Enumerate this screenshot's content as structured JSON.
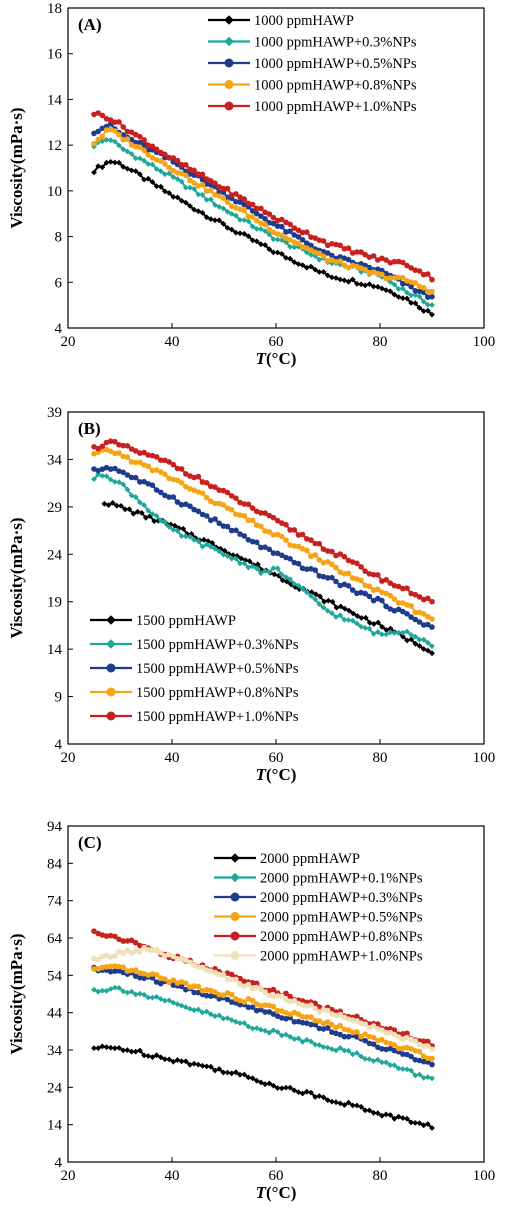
{
  "chart_data": [
    {
      "type": "line",
      "panel_label": "(A)",
      "xlabel": "T(°C)",
      "ylabel": "Viscosity(mPa·s)",
      "xlim": [
        20,
        100
      ],
      "ylim": [
        4,
        18
      ],
      "xticks": [
        20,
        40,
        60,
        80,
        100
      ],
      "yticks": [
        4,
        6,
        8,
        10,
        12,
        14,
        16,
        18
      ],
      "legend_position": "top-right",
      "series": [
        {
          "name": "1000 ppmHAWP",
          "color": "#000000",
          "marker": "diamond",
          "x": [
            25,
            28,
            30,
            40,
            50,
            60,
            70,
            80,
            85,
            90
          ],
          "y": [
            10.9,
            11.3,
            11.2,
            9.8,
            8.5,
            7.3,
            6.3,
            5.8,
            5.3,
            4.6
          ]
        },
        {
          "name": "1000 ppmHAWP+0.3%NPs",
          "color": "#1fa89a",
          "marker": "diamond",
          "x": [
            25,
            28,
            30,
            40,
            50,
            60,
            70,
            80,
            85,
            90
          ],
          "y": [
            12.0,
            12.3,
            11.9,
            10.6,
            9.2,
            7.9,
            6.9,
            6.3,
            5.6,
            5.0
          ]
        },
        {
          "name": "1000 ppmHAWP+0.5%NPs",
          "color": "#1f3c8c",
          "marker": "circle",
          "x": [
            25,
            28,
            30,
            40,
            50,
            60,
            70,
            80,
            85,
            90
          ],
          "y": [
            12.6,
            12.9,
            12.5,
            11.3,
            9.9,
            8.5,
            7.2,
            6.5,
            5.9,
            5.3
          ]
        },
        {
          "name": "1000 ppmHAWP+0.8%NPs",
          "color": "#f5a416",
          "marker": "circle",
          "x": [
            25,
            28,
            30,
            40,
            50,
            60,
            70,
            80,
            85,
            90
          ],
          "y": [
            12.1,
            12.7,
            12.4,
            11.0,
            9.6,
            8.2,
            7.0,
            6.3,
            6.1,
            5.6
          ]
        },
        {
          "name": "1000 ppmHAWP+1.0%NPs",
          "color": "#c8201e",
          "marker": "circle",
          "x": [
            25,
            28,
            30,
            40,
            50,
            60,
            70,
            80,
            85,
            90
          ],
          "y": [
            13.4,
            13.2,
            12.9,
            11.4,
            10.1,
            8.8,
            7.7,
            7.0,
            6.8,
            6.2
          ]
        }
      ]
    },
    {
      "type": "line",
      "panel_label": "(B)",
      "xlabel": "T(°C)",
      "ylabel": "Viscosity(mPa·s)",
      "xlim": [
        20,
        100
      ],
      "ylim": [
        4,
        39
      ],
      "xticks": [
        20,
        40,
        60,
        80,
        100
      ],
      "yticks": [
        4,
        9,
        14,
        19,
        24,
        29,
        34,
        39
      ],
      "legend_position": "bottom-left",
      "series": [
        {
          "name": "1500 ppmHAWP",
          "color": "#000000",
          "marker": "diamond",
          "x": [
            27,
            30,
            40,
            50,
            60,
            70,
            80,
            90
          ],
          "y": [
            29.5,
            29.0,
            27.0,
            24.5,
            21.8,
            19.0,
            16.5,
            13.8
          ]
        },
        {
          "name": "1500 ppmHAWP+0.3%NPs",
          "color": "#1fa89a",
          "marker": "diamond",
          "x": [
            25,
            27,
            30,
            35,
            40,
            50,
            58,
            60,
            70,
            80,
            85,
            90
          ],
          "y": [
            32.0,
            32.5,
            31.5,
            29.0,
            26.5,
            24.0,
            22.0,
            22.5,
            18.0,
            15.5,
            16.0,
            14.5
          ]
        },
        {
          "name": "1500 ppmHAWP+0.5%NPs",
          "color": "#1f3c8c",
          "marker": "circle",
          "x": [
            25,
            28,
            30,
            40,
            50,
            60,
            70,
            80,
            90
          ],
          "y": [
            32.8,
            33.2,
            32.8,
            30.0,
            27.0,
            24.0,
            21.5,
            19.0,
            16.3
          ]
        },
        {
          "name": "1500 ppmHAWP+0.8%NPs",
          "color": "#f5a416",
          "marker": "circle",
          "x": [
            25,
            28,
            30,
            40,
            50,
            60,
            70,
            80,
            90
          ],
          "y": [
            34.5,
            35.0,
            34.5,
            32.0,
            29.0,
            26.0,
            23.0,
            20.0,
            17.2
          ]
        },
        {
          "name": "1500 ppmHAWP+1.0%NPs",
          "color": "#c8201e",
          "marker": "circle",
          "x": [
            25,
            28,
            30,
            40,
            50,
            60,
            70,
            80,
            90
          ],
          "y": [
            35.2,
            35.8,
            35.5,
            33.5,
            30.5,
            27.5,
            24.5,
            21.5,
            19.0
          ]
        }
      ]
    },
    {
      "type": "line",
      "panel_label": "(C)",
      "xlabel": "T(°C)",
      "ylabel": "Viscosity(mPa·s)",
      "xlim": [
        20,
        100
      ],
      "ylim": [
        4,
        94
      ],
      "xticks": [
        20,
        40,
        60,
        80,
        100
      ],
      "yticks": [
        4,
        14,
        24,
        34,
        44,
        54,
        64,
        74,
        84,
        94
      ],
      "legend_position": "top-right",
      "series": [
        {
          "name": "2000 ppmHAWP",
          "color": "#000000",
          "marker": "diamond",
          "x": [
            25,
            30,
            40,
            50,
            60,
            70,
            80,
            90
          ],
          "y": [
            34.5,
            34.5,
            31.5,
            28.5,
            24.5,
            21.0,
            17.0,
            13.5
          ]
        },
        {
          "name": "2000 ppmHAWP+0.1%NPs",
          "color": "#1fa89a",
          "marker": "diamond",
          "x": [
            25,
            30,
            40,
            50,
            60,
            70,
            80,
            90
          ],
          "y": [
            50.0,
            50.5,
            46.5,
            42.5,
            38.5,
            35.0,
            31.0,
            26.0
          ]
        },
        {
          "name": "2000 ppmHAWP+0.3%NPs",
          "color": "#1f3c8c",
          "marker": "circle",
          "x": [
            25,
            30,
            40,
            50,
            60,
            70,
            80,
            90
          ],
          "y": [
            55.5,
            55.0,
            51.5,
            47.5,
            43.5,
            39.5,
            35.0,
            30.0
          ]
        },
        {
          "name": "2000 ppmHAWP+0.5%NPs",
          "color": "#f5a416",
          "marker": "circle",
          "x": [
            25,
            30,
            40,
            50,
            60,
            70,
            80,
            90
          ],
          "y": [
            55.5,
            56.0,
            52.5,
            49.0,
            45.0,
            41.0,
            36.5,
            32.0
          ]
        },
        {
          "name": "2000 ppmHAWP+0.8%NPs",
          "color": "#c8201e",
          "marker": "circle",
          "x": [
            25,
            30,
            40,
            50,
            60,
            70,
            80,
            90
          ],
          "y": [
            65.5,
            64.0,
            59.0,
            54.5,
            49.5,
            45.0,
            40.5,
            35.5
          ]
        },
        {
          "name": "2000 ppmHAWP+1.0%NPs",
          "color": "#efe0b8",
          "marker": "circle",
          "x": [
            25,
            30,
            35,
            40,
            50,
            60,
            70,
            80,
            90
          ],
          "y": [
            58.0,
            60.0,
            61.0,
            59.0,
            53.5,
            48.5,
            44.0,
            39.5,
            34.5
          ]
        }
      ]
    }
  ]
}
